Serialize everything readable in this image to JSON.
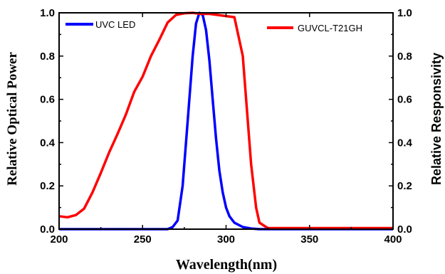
{
  "chart_data": {
    "type": "line",
    "xlabel": "Wavelength(nm)",
    "ylabel_left": "Relative Optical Power",
    "ylabel_right": "Relative Responsivity",
    "xlim": [
      200,
      400
    ],
    "ylim": [
      0,
      1.0
    ],
    "x_ticks": [
      200,
      250,
      300,
      350,
      400
    ],
    "y_ticks": [
      0.0,
      0.2,
      0.4,
      0.6,
      0.8,
      1.0
    ],
    "y_tick_labels": [
      "0.0",
      "0.2",
      "0.4",
      "0.6",
      "0.8",
      "1.0"
    ],
    "grid": false,
    "legend": [
      "UVC LED",
      "GUVCL-T21GH"
    ],
    "series": [
      {
        "name": "UVC LED",
        "color": "#0000ff",
        "axis": "left",
        "x": [
          200,
          265,
          268,
          271,
          274,
          277,
          280,
          282,
          284,
          286,
          288,
          290,
          292,
          294,
          296,
          298,
          300,
          302,
          305,
          310,
          315,
          320,
          400
        ],
        "y": [
          0.0,
          0.0,
          0.01,
          0.04,
          0.2,
          0.5,
          0.8,
          0.95,
          1.0,
          0.99,
          0.92,
          0.78,
          0.6,
          0.42,
          0.27,
          0.17,
          0.1,
          0.06,
          0.03,
          0.01,
          0.003,
          0.0,
          0.0
        ]
      },
      {
        "name": "GUVCL-T21GH",
        "color": "#ff0000",
        "axis": "right",
        "x": [
          200,
          205,
          210,
          215,
          220,
          225,
          230,
          235,
          240,
          245,
          250,
          255,
          260,
          265,
          270,
          275,
          280,
          285,
          290,
          295,
          300,
          305,
          310,
          315,
          318,
          320,
          325,
          330,
          350,
          375,
          400
        ],
        "y": [
          0.06,
          0.055,
          0.065,
          0.095,
          0.17,
          0.26,
          0.355,
          0.44,
          0.53,
          0.635,
          0.705,
          0.8,
          0.875,
          0.955,
          0.99,
          0.998,
          1.0,
          0.995,
          0.995,
          0.99,
          0.985,
          0.98,
          0.8,
          0.3,
          0.1,
          0.03,
          0.005,
          0.005,
          0.005,
          0.005,
          0.005
        ]
      }
    ]
  }
}
